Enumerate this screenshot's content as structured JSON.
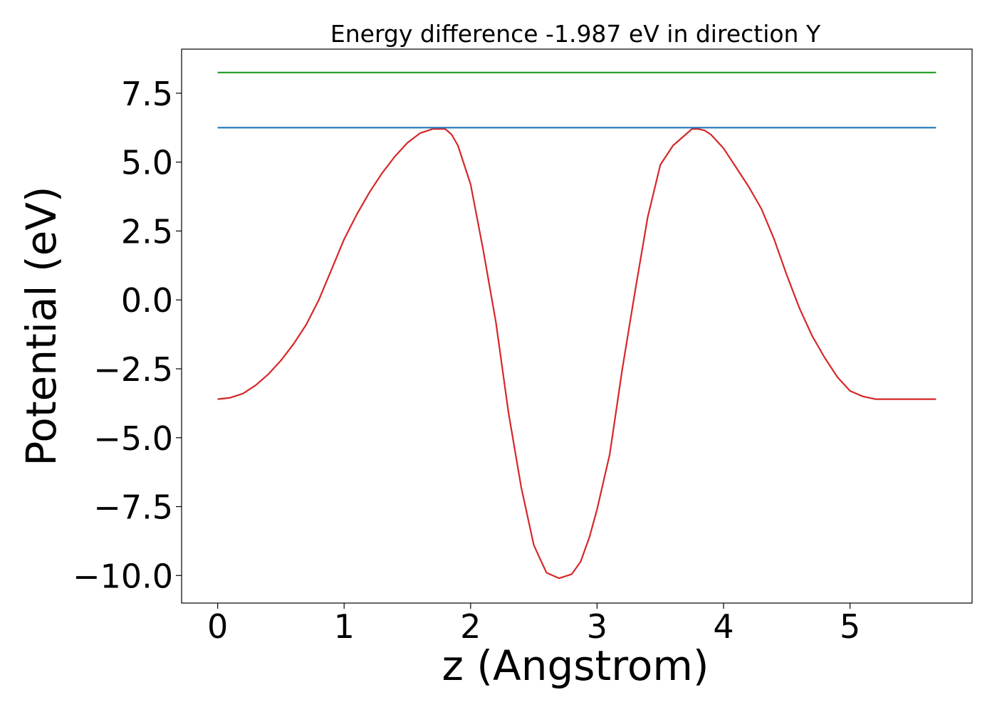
{
  "chart_data": {
    "type": "line",
    "title": "Energy difference -1.987 eV in direction Y",
    "xlabel": "z (Angstrom)",
    "ylabel": "Potential (eV)",
    "xlim": [
      -0.285,
      5.965
    ],
    "ylim": [
      -11.0,
      9.1
    ],
    "xticks": [
      0,
      1,
      2,
      3,
      4,
      5
    ],
    "xtick_labels": [
      "0",
      "1",
      "2",
      "3",
      "4",
      "5"
    ],
    "yticks": [
      7.5,
      5.0,
      2.5,
      0.0,
      -2.5,
      -5.0,
      -7.5,
      -10.0
    ],
    "ytick_labels": [
      "7.5",
      "5.0",
      "2.5",
      "0.0",
      "−2.5",
      "−5.0",
      "−7.5",
      "−10.0"
    ],
    "grid": false,
    "series": [
      {
        "color": "#d62728",
        "x": [
          0.0,
          0.1,
          0.2,
          0.3,
          0.4,
          0.5,
          0.6,
          0.7,
          0.8,
          0.9,
          1.0,
          1.1,
          1.2,
          1.3,
          1.4,
          1.5,
          1.6,
          1.7,
          1.8,
          1.85,
          1.9,
          1.95,
          2.0,
          2.05,
          2.1,
          2.2,
          2.3,
          2.4,
          2.5,
          2.6,
          2.7,
          2.8,
          2.87,
          2.94,
          3.0,
          3.1,
          3.2,
          3.3,
          3.4,
          3.5,
          3.6,
          3.7,
          3.75,
          3.8,
          3.85,
          3.9,
          4.0,
          4.1,
          4.2,
          4.3,
          4.4,
          4.5,
          4.6,
          4.7,
          4.8,
          4.9,
          5.0,
          5.1,
          5.2,
          5.3,
          5.4,
          5.5,
          5.6,
          5.68
        ],
        "y": [
          -3.6,
          -3.55,
          -3.4,
          -3.1,
          -2.7,
          -2.2,
          -1.6,
          -0.9,
          0.0,
          1.1,
          2.2,
          3.1,
          3.9,
          4.6,
          5.2,
          5.7,
          6.05,
          6.2,
          6.2,
          6.0,
          5.6,
          4.9,
          4.2,
          3.0,
          1.8,
          -0.8,
          -4.1,
          -6.8,
          -8.9,
          -9.9,
          -10.1,
          -9.95,
          -9.5,
          -8.6,
          -7.6,
          -5.6,
          -2.5,
          0.3,
          3.0,
          4.9,
          5.6,
          6.0,
          6.2,
          6.2,
          6.15,
          6.0,
          5.5,
          4.8,
          4.1,
          3.3,
          2.2,
          0.9,
          -0.3,
          -1.3,
          -2.1,
          -2.8,
          -3.3,
          -3.5,
          -3.6,
          -3.6,
          -3.6,
          -3.6,
          -3.6,
          -3.6
        ]
      },
      {
        "color": "#1f77b4",
        "x": [
          0.0,
          5.68
        ],
        "y": [
          6.25,
          6.25
        ]
      },
      {
        "color": "#2ca02c",
        "x": [
          0.0,
          5.68
        ],
        "y": [
          8.25,
          8.25
        ]
      }
    ]
  }
}
